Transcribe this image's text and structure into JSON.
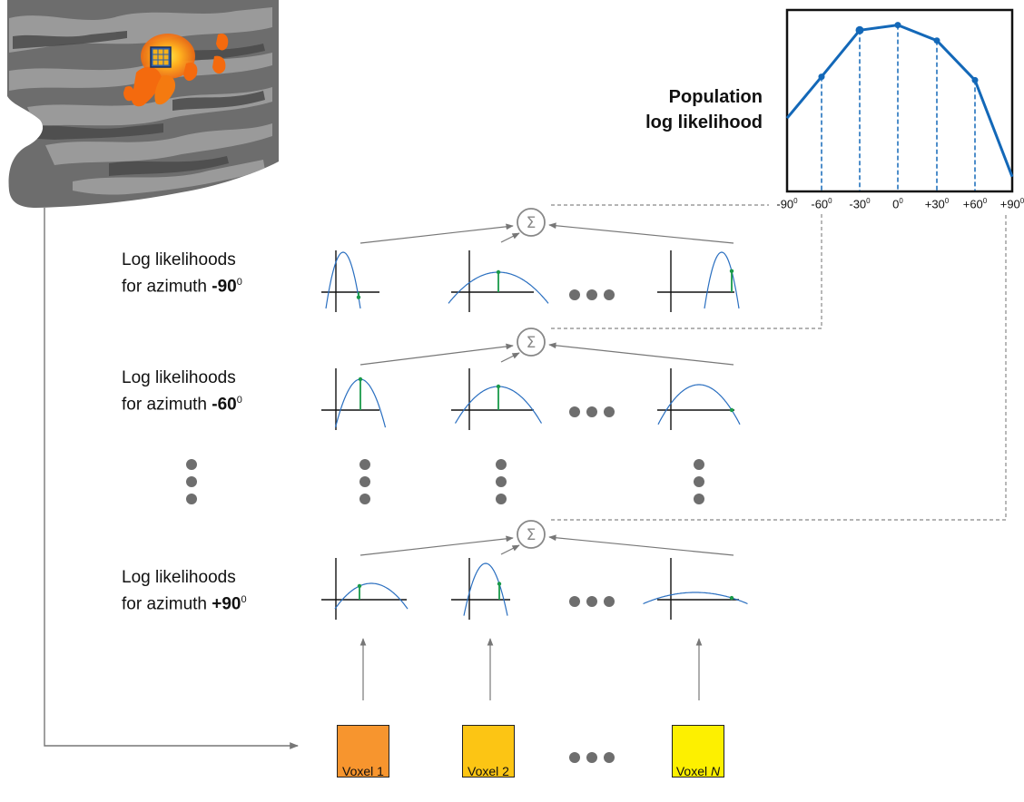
{
  "rows": [
    {
      "label_line1": "Log likelihoods",
      "label_line2_prefix": "for azimuth ",
      "azimuth": "-90",
      "unit": "0"
    },
    {
      "label_line1": "Log likelihoods",
      "label_line2_prefix": "for azimuth ",
      "azimuth": "-60",
      "unit": "0"
    },
    {
      "label_line1": "Log likelihoods",
      "label_line2_prefix": "for azimuth ",
      "azimuth": "+90",
      "unit": "0"
    }
  ],
  "voxels": [
    {
      "label": "Voxel 1",
      "color": "#f7952e"
    },
    {
      "label": "Voxel 2",
      "color": "#fcc514"
    },
    {
      "label_prefix": "Voxel ",
      "label_italic": "N",
      "color": "#fdf000"
    }
  ],
  "sum_symbol": "Σ",
  "population": {
    "label_line1": "Population",
    "label_line2": "log likelihood"
  },
  "chart_data": {
    "type": "line",
    "x_tick_labels": [
      "-90",
      "-60",
      "-30",
      "0",
      "+30",
      "+60",
      "+90"
    ],
    "x_unit": "0",
    "x": [
      -90,
      -60,
      -30,
      0,
      30,
      60,
      90
    ],
    "series": [
      {
        "values": [
          0.42,
          0.66,
          0.93,
          0.96,
          0.87,
          0.64,
          0.08
        ]
      }
    ],
    "ylim": [
      0,
      1
    ],
    "color": "#1368b8",
    "grid": false
  },
  "colors": {
    "curve": "#2a6fc0",
    "stem": "#1a9a4a",
    "arrow": "#777777",
    "dots": "#6e6e6e"
  }
}
